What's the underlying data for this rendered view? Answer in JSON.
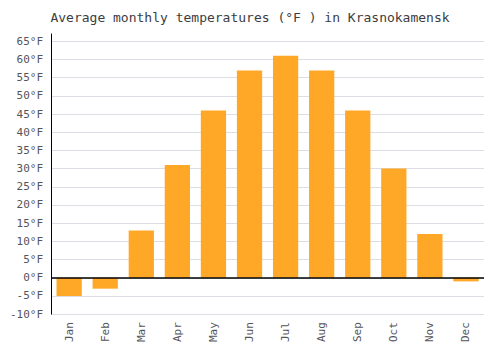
{
  "chart_data": {
    "type": "bar",
    "title": "Average monthly temperatures (°F ) in Krasnokamensk",
    "categories": [
      "Jan",
      "Feb",
      "Mar",
      "Apr",
      "May",
      "Jun",
      "Jul",
      "Aug",
      "Sep",
      "Oct",
      "Nov",
      "Dec"
    ],
    "values": [
      -5.0,
      -3.0,
      13.0,
      31.0,
      46.0,
      57.0,
      61.0,
      57.0,
      46.0,
      30.0,
      12.0,
      -1.0
    ],
    "color": "#FFA726",
    "ylim": [
      -10,
      67
    ],
    "yticks": [
      {
        "value": -10,
        "label": "-10°F"
      },
      {
        "value": -5,
        "label": "-5°F"
      },
      {
        "value": 0,
        "label": "0°F"
      },
      {
        "value": 5,
        "label": "5°F"
      },
      {
        "value": 10,
        "label": "10°F"
      },
      {
        "value": 15,
        "label": "15°F"
      },
      {
        "value": 20,
        "label": "20°F"
      },
      {
        "value": 25,
        "label": "25°F"
      },
      {
        "value": 30,
        "label": "30°F"
      },
      {
        "value": 35,
        "label": "35°F"
      },
      {
        "value": 40,
        "label": "40°F"
      },
      {
        "value": 45,
        "label": "45°F"
      },
      {
        "value": 50,
        "label": "50°F"
      },
      {
        "value": 55,
        "label": "55°F"
      },
      {
        "value": 60,
        "label": "60°F"
      },
      {
        "value": 65,
        "label": "65°F"
      }
    ],
    "grid": true
  }
}
